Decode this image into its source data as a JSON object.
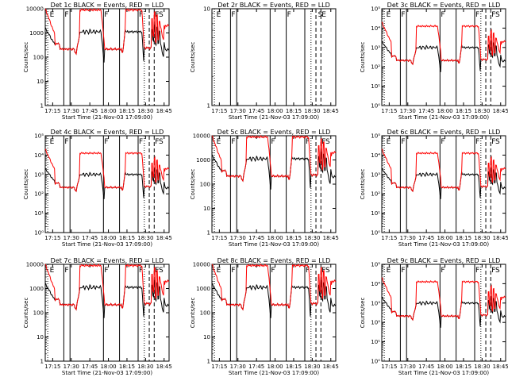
{
  "chart_data": [
    {
      "type": "line",
      "title": "Det 1c BLACK = Events, RED = LLD",
      "ylabel": "Counts/sec",
      "xlabel": "Start Time (21-Nov-03 17:09:00)",
      "y_scale": "log",
      "ylim": [
        1,
        10000
      ],
      "yticks": [
        "1",
        "10",
        "100",
        "1000",
        "10000"
      ],
      "xticks": [
        "17:15",
        "17:30",
        "17:45",
        "18:00",
        "18:15",
        "18:30",
        "18:45"
      ],
      "flags": [
        "E",
        "F",
        "F",
        "F",
        "F",
        "S"
      ],
      "series": [
        {
          "name": "Events",
          "color": "#000000",
          "profile": "bright"
        },
        {
          "name": "LLD",
          "color": "#ff0000",
          "profile": "bright"
        }
      ]
    },
    {
      "type": "line",
      "title": "Det 2r BLACK = Events, RED = LLD",
      "ylabel": "Counts/sec",
      "xlabel": "Start Time (21-Nov-03 17:09:00)",
      "y_scale": "log",
      "ylim": [
        1,
        10
      ],
      "yticks": [
        "1",
        "10"
      ],
      "xticks": [
        "17:15",
        "17:30",
        "17:45",
        "18:00",
        "18:15",
        "18:30",
        "18:45"
      ],
      "flags": [
        "E",
        "F",
        "F",
        "S",
        "E"
      ],
      "series": []
    },
    {
      "type": "line",
      "title": "Det 3c BLACK = Events, RED = LLD",
      "ylabel": "Counts/sec",
      "xlabel": "Start Time (21-Nov-03 17:09:00)",
      "y_scale": "log",
      "ylim": [
        1,
        100000
      ],
      "yticks": [
        "10⁰",
        "10¹",
        "10²",
        "10³",
        "10⁴",
        "10⁵"
      ],
      "xticks": [
        "17:15",
        "17:30",
        "17:45",
        "18:00",
        "18:15",
        "18:30",
        "18:45"
      ],
      "flags": [
        "E",
        "F",
        "F",
        "F",
        "F",
        "S"
      ],
      "series": [
        {
          "name": "Events",
          "color": "#000000",
          "profile": "mid"
        },
        {
          "name": "LLD",
          "color": "#ff0000",
          "profile": "mid"
        }
      ]
    },
    {
      "type": "line",
      "title": "Det 4c BLACK = Events, RED = LLD",
      "ylabel": "Counts/sec",
      "xlabel": "Start Time (21-Nov-03 17:09:00)",
      "y_scale": "log",
      "ylim": [
        1,
        100000
      ],
      "yticks": [
        "10⁰",
        "10¹",
        "10²",
        "10³",
        "10⁴",
        "10⁵"
      ],
      "xticks": [
        "17:15",
        "17:30",
        "17:45",
        "18:00",
        "18:15",
        "18:30",
        "18:45"
      ],
      "flags": [
        "E",
        "F",
        "F",
        "F",
        "F",
        "S"
      ],
      "series": [
        {
          "name": "Events",
          "color": "#000000",
          "profile": "mid"
        },
        {
          "name": "LLD",
          "color": "#ff0000",
          "profile": "mid"
        }
      ]
    },
    {
      "type": "line",
      "title": "Det 5c BLACK = Events, RED = LLD",
      "ylabel": "Counts/sec",
      "xlabel": "Start Time (21-Nov-03 17:09:00)",
      "y_scale": "log",
      "ylim": [
        1,
        10000
      ],
      "yticks": [
        "1",
        "10",
        "100",
        "1000",
        "10000"
      ],
      "xticks": [
        "17:15",
        "17:30",
        "17:45",
        "18:00",
        "18:15",
        "18:30",
        "18:45"
      ],
      "flags": [
        "E",
        "F",
        "F",
        "F",
        "F",
        "S"
      ],
      "series": [
        {
          "name": "Events",
          "color": "#000000",
          "profile": "bright"
        },
        {
          "name": "LLD",
          "color": "#ff0000",
          "profile": "bright"
        }
      ]
    },
    {
      "type": "line",
      "title": "Det 6c BLACK = Events, RED = LLD",
      "ylabel": "Counts/sec",
      "xlabel": "Start Time (21-Nov-03 17:09:00)",
      "y_scale": "log",
      "ylim": [
        1,
        100000
      ],
      "yticks": [
        "10⁰",
        "10¹",
        "10²",
        "10³",
        "10⁴",
        "10⁵"
      ],
      "xticks": [
        "17:15",
        "17:30",
        "17:45",
        "18:00",
        "18:15",
        "18:30",
        "18:45"
      ],
      "flags": [
        "E",
        "F",
        "F",
        "F",
        "F",
        "S"
      ],
      "series": [
        {
          "name": "Events",
          "color": "#000000",
          "profile": "mid"
        },
        {
          "name": "LLD",
          "color": "#ff0000",
          "profile": "mid"
        }
      ]
    },
    {
      "type": "line",
      "title": "Det 7c BLACK = Events, RED = LLD",
      "ylabel": "Counts/sec",
      "xlabel": "Start Time (21-Nov-03 17:09:00)",
      "y_scale": "log",
      "ylim": [
        1,
        10000
      ],
      "yticks": [
        "1",
        "10",
        "100",
        "1000",
        "10000"
      ],
      "xticks": [
        "17:15",
        "17:30",
        "17:45",
        "18:00",
        "18:15",
        "18:30",
        "18:45"
      ],
      "flags": [
        "E",
        "F",
        "F",
        "F",
        "F",
        "S"
      ],
      "series": [
        {
          "name": "Events",
          "color": "#000000",
          "profile": "bright"
        },
        {
          "name": "LLD",
          "color": "#ff0000",
          "profile": "bright"
        }
      ]
    },
    {
      "type": "line",
      "title": "Det 8c BLACK = Events, RED = LLD",
      "ylabel": "Counts/sec",
      "xlabel": "Start Time (21-Nov-03 17:09:00)",
      "y_scale": "log",
      "ylim": [
        1,
        10000
      ],
      "yticks": [
        "1",
        "10",
        "100",
        "1000",
        "10000"
      ],
      "xticks": [
        "17:15",
        "17:30",
        "17:45",
        "18:00",
        "18:15",
        "18:30",
        "18:45"
      ],
      "flags": [
        "E",
        "F",
        "F",
        "F",
        "F",
        "S"
      ],
      "series": [
        {
          "name": "Events",
          "color": "#000000",
          "profile": "bright"
        },
        {
          "name": "LLD",
          "color": "#ff0000",
          "profile": "bright"
        }
      ]
    },
    {
      "type": "line",
      "title": "Det 9c BLACK = Events, RED = LLD",
      "ylabel": "Counts/sec",
      "xlabel": "Start Time (21-Nov-03 17:09:00)",
      "y_scale": "log",
      "ylim": [
        1,
        100000
      ],
      "yticks": [
        "10⁰",
        "10¹",
        "10²",
        "10³",
        "10⁴",
        "10⁵"
      ],
      "xticks": [
        "17:15",
        "17:30",
        "17:45",
        "18:00",
        "18:15",
        "18:30",
        "18:45"
      ],
      "flags": [
        "E",
        "F",
        "F",
        "F",
        "F",
        "S"
      ],
      "series": [
        {
          "name": "Events",
          "color": "#000000",
          "profile": "mid"
        },
        {
          "name": "LLD",
          "color": "#ff0000",
          "profile": "mid"
        }
      ]
    }
  ]
}
